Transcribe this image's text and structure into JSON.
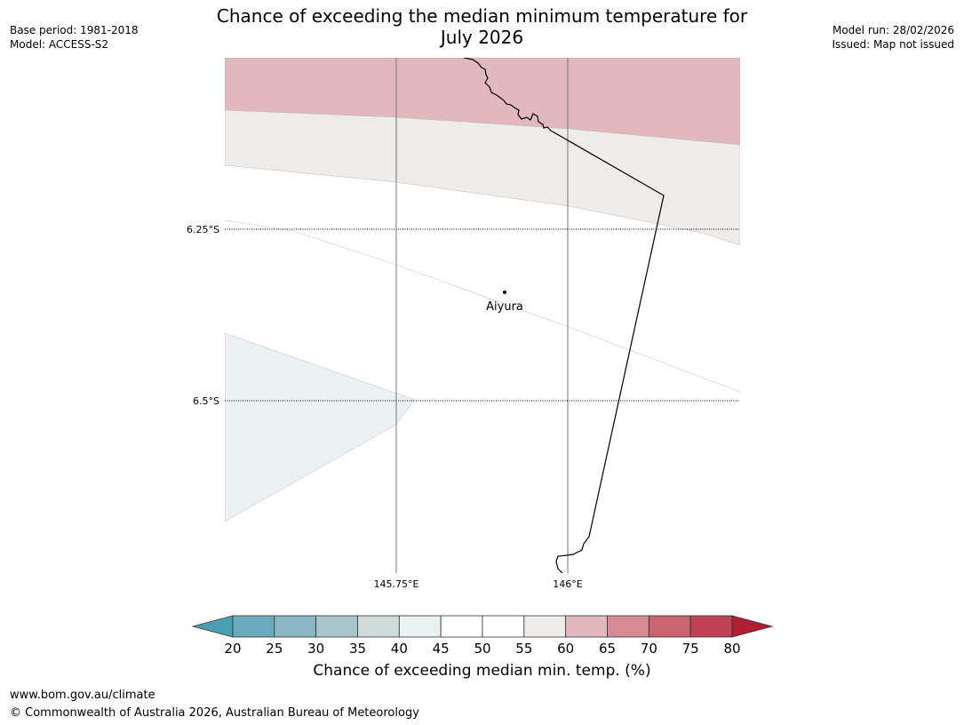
{
  "title_line1": "Chance of exceeding the median minimum temperature for",
  "title_line2": "July 2026",
  "base_period": "Base period: 1981-2018",
  "model": "Model: ACCESS-S2",
  "model_run": "Model run: 28/02/2026",
  "issued": "Issued: Map not issued",
  "map": {
    "lat_labels": [
      "6.25°S",
      "6.5°S"
    ],
    "lon_labels": [
      "145.75°E",
      "146°E"
    ],
    "place": "Aiyura"
  },
  "colorbar": {
    "ticks": [
      "20",
      "25",
      "30",
      "35",
      "40",
      "45",
      "50",
      "55",
      "60",
      "65",
      "70",
      "75",
      "80"
    ],
    "colors": [
      "#6aaabb",
      "#8bb7c4",
      "#a9c6cc",
      "#d0dadb",
      "#ebf0f1",
      "#ffffff",
      "#ffffff",
      "#eeecea",
      "#e1b8be",
      "#d68a94",
      "#c96470",
      "#bf4354"
    ],
    "under_color": "#4a9fb0",
    "over_color": "#b01e36",
    "label": "Chance of exceeding median min. temp. (%)"
  },
  "footer_url": "www.bom.gov.au/climate",
  "footer_copyright": "© Commonwealth of Australia 2026, Australian Bureau of Meteorology",
  "region_colors": {
    "band_60_65": "#e1b8be",
    "band_55_60": "#eeecea",
    "band_40_45": "#ebf0f1"
  }
}
